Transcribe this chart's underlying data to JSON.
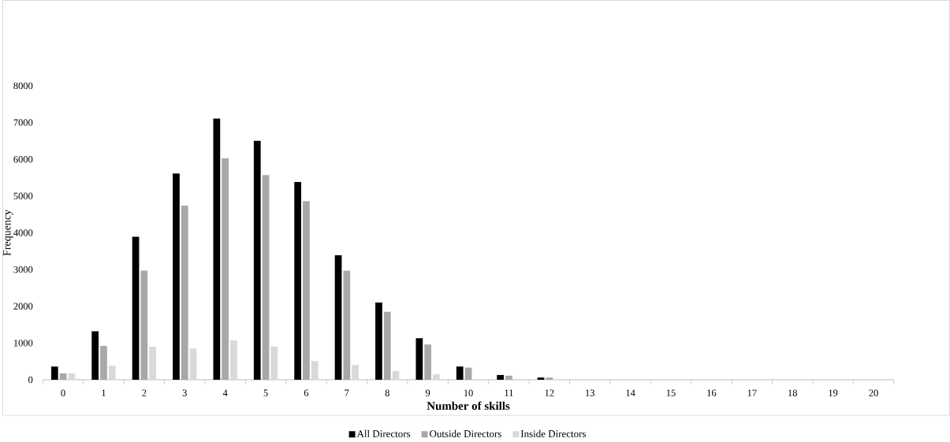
{
  "chart_data": {
    "type": "bar",
    "xlabel": "Number of skills",
    "ylabel": "Frequency",
    "categories": [
      "0",
      "1",
      "2",
      "3",
      "4",
      "5",
      "6",
      "7",
      "8",
      "9",
      "10",
      "11",
      "12",
      "13",
      "14",
      "15",
      "16",
      "17",
      "18",
      "19",
      "20"
    ],
    "series": [
      {
        "name": "All Directors",
        "color": "#000000",
        "values": [
          360,
          1320,
          3890,
          5610,
          7110,
          6500,
          5380,
          3390,
          2100,
          1130,
          360,
          130,
          60,
          0,
          0,
          0,
          0,
          0,
          0,
          0,
          0
        ]
      },
      {
        "name": "Outside Directors",
        "color": "#aaa7a7",
        "values": [
          170,
          920,
          2970,
          4740,
          6030,
          5570,
          4860,
          2970,
          1850,
          960,
          330,
          110,
          60,
          0,
          0,
          0,
          0,
          0,
          0,
          0,
          0
        ]
      },
      {
        "name": "Inside Directors",
        "color": "#d9d9d9",
        "values": [
          170,
          380,
          900,
          850,
          1070,
          900,
          510,
          400,
          240,
          150,
          0,
          20,
          0,
          0,
          0,
          0,
          0,
          0,
          0,
          0,
          0
        ]
      }
    ],
    "ylim": [
      0,
      8000
    ],
    "yticks": [
      0,
      1000,
      2000,
      3000,
      4000,
      5000,
      6000,
      7000,
      8000
    ],
    "grid": false,
    "legend": "bottom"
  }
}
